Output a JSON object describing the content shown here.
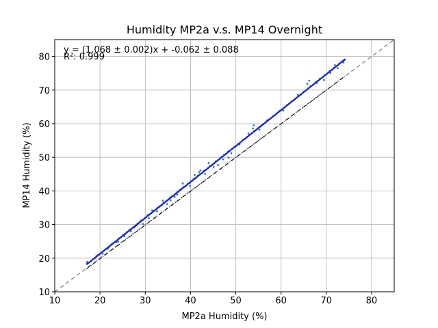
{
  "chart_data": {
    "type": "scatter",
    "title": "Humidity MP2a v.s. MP14 Overnight",
    "xlabel": "MP2a Humidity (%)",
    "ylabel": "MP14 Humidity (%)",
    "xlim": [
      10,
      85
    ],
    "ylim": [
      10,
      85
    ],
    "xticks": [
      10,
      20,
      30,
      40,
      50,
      60,
      70,
      80
    ],
    "yticks": [
      10,
      20,
      30,
      40,
      50,
      60,
      70,
      80
    ],
    "grid": true,
    "annotations": {
      "equation": "y = (1.068 ± 0.002)x + -0.062 ± 0.088",
      "r_squared": "R²: 0.999"
    },
    "fit": {
      "slope": 1.068,
      "intercept": -0.062,
      "x_range": [
        17,
        74.2
      ],
      "color": "#1f1fd6"
    },
    "identity_line": {
      "slope": 1,
      "intercept": 0,
      "color": "#999999",
      "style": "dashed"
    },
    "reference_line": {
      "x_range": [
        17,
        74.2
      ],
      "y_range": [
        16.8,
        74.2
      ],
      "color": "#000000",
      "style": "dash-dot"
    },
    "points_color": "#2a7ab8",
    "points": [
      [
        17.1,
        18.4
      ],
      [
        17.2,
        18.9
      ],
      [
        18.0,
        19.1
      ],
      [
        18.6,
        19.8
      ],
      [
        19.0,
        20.1
      ],
      [
        19.5,
        20.9
      ],
      [
        19.9,
        21.1
      ],
      [
        20.3,
        21.7
      ],
      [
        20.8,
        22.2
      ],
      [
        21.2,
        22.6
      ],
      [
        21.5,
        22.8
      ],
      [
        22.0,
        23.4
      ],
      [
        22.4,
        23.9
      ],
      [
        22.9,
        24.4
      ],
      [
        23.3,
        24.8
      ],
      [
        23.8,
        25.3
      ],
      [
        24.2,
        25.9
      ],
      [
        24.7,
        26.3
      ],
      [
        25.1,
        26.9
      ],
      [
        25.6,
        27.2
      ],
      [
        26.0,
        27.8
      ],
      [
        26.5,
        28.4
      ],
      [
        26.9,
        28.7
      ],
      [
        27.4,
        29.2
      ],
      [
        27.8,
        29.6
      ],
      [
        28.3,
        30.3
      ],
      [
        28.7,
        30.6
      ],
      [
        29.1,
        31.2
      ],
      [
        29.6,
        31.5
      ],
      [
        30.0,
        32.0
      ],
      [
        30.5,
        32.8
      ],
      [
        30.9,
        33.0
      ],
      [
        31.4,
        33.5
      ],
      [
        31.8,
        34.1
      ],
      [
        32.3,
        34.4
      ],
      [
        32.7,
        35.0
      ],
      [
        33.1,
        35.4
      ],
      [
        33.6,
        35.7
      ],
      [
        34.0,
        36.4
      ],
      [
        34.5,
        36.8
      ],
      [
        34.9,
        37.2
      ],
      [
        35.4,
        37.9
      ],
      [
        35.8,
        38.3
      ],
      [
        36.3,
        38.6
      ],
      [
        36.7,
        39.2
      ],
      [
        37.1,
        39.7
      ],
      [
        37.6,
        40.2
      ],
      [
        38.0,
        40.6
      ],
      [
        38.5,
        41.2
      ],
      [
        38.9,
        41.4
      ],
      [
        39.4,
        42.1
      ],
      [
        39.8,
        42.4
      ],
      [
        40.3,
        43.0
      ],
      [
        40.7,
        43.6
      ],
      [
        41.1,
        43.8
      ],
      [
        41.6,
        44.5
      ],
      [
        42.0,
        44.9
      ],
      [
        42.5,
        45.2
      ],
      [
        42.9,
        46.0
      ],
      [
        43.4,
        46.3
      ],
      [
        43.8,
        46.7
      ],
      [
        44.3,
        47.4
      ],
      [
        44.7,
        47.6
      ],
      [
        45.2,
        48.2
      ],
      [
        45.6,
        48.8
      ],
      [
        46.0,
        49.1
      ],
      [
        46.5,
        49.6
      ],
      [
        46.9,
        50.1
      ],
      [
        47.4,
        50.7
      ],
      [
        47.8,
        51.0
      ],
      [
        48.3,
        51.7
      ],
      [
        48.7,
        52.0
      ],
      [
        49.2,
        52.5
      ],
      [
        49.6,
        53.0
      ],
      [
        50.0,
        53.3
      ],
      [
        50.5,
        54.0
      ],
      [
        51.0,
        54.4
      ],
      [
        51.5,
        55.1
      ],
      [
        52.0,
        55.5
      ],
      [
        52.5,
        56.0
      ],
      [
        53.0,
        56.7
      ],
      [
        53.6,
        57.2
      ],
      [
        54.1,
        57.9
      ],
      [
        54.6,
        58.3
      ],
      [
        55.1,
        58.9
      ],
      [
        55.6,
        59.4
      ],
      [
        56.1,
        59.9
      ],
      [
        56.6,
        60.4
      ],
      [
        57.1,
        61.1
      ],
      [
        57.6,
        61.5
      ],
      [
        58.2,
        62.2
      ],
      [
        58.7,
        62.6
      ],
      [
        59.2,
        63.3
      ],
      [
        59.7,
        63.8
      ],
      [
        60.2,
        64.2
      ],
      [
        60.8,
        64.9
      ],
      [
        61.3,
        65.5
      ],
      [
        61.8,
        66.0
      ],
      [
        62.3,
        66.6
      ],
      [
        62.9,
        67.1
      ],
      [
        63.4,
        67.7
      ],
      [
        63.9,
        68.3
      ],
      [
        64.4,
        68.7
      ],
      [
        65.0,
        69.5
      ],
      [
        65.5,
        69.9
      ],
      [
        66.0,
        70.5
      ],
      [
        66.5,
        71.1
      ],
      [
        67.1,
        71.6
      ],
      [
        67.6,
        72.3
      ],
      [
        68.1,
        72.7
      ],
      [
        68.6,
        73.4
      ],
      [
        69.2,
        73.8
      ],
      [
        69.7,
        74.5
      ],
      [
        70.2,
        74.9
      ],
      [
        70.7,
        75.6
      ],
      [
        71.2,
        76.0
      ],
      [
        71.7,
        76.6
      ],
      [
        72.2,
        77.1
      ],
      [
        72.7,
        77.7
      ],
      [
        73.1,
        78.1
      ],
      [
        73.5,
        78.6
      ],
      [
        73.9,
        78.9
      ],
      [
        74.1,
        79.1
      ],
      [
        72.5,
        76.5
      ],
      [
        71.9,
        77.4
      ],
      [
        66.2,
        72.8
      ],
      [
        65.8,
        71.9
      ],
      [
        55.2,
        58.2
      ],
      [
        54.0,
        59.5
      ],
      [
        48.4,
        49.9
      ],
      [
        49.0,
        51.2
      ],
      [
        47.2,
        49.4
      ],
      [
        46.1,
        47.7
      ],
      [
        45.1,
        47.1
      ],
      [
        44.0,
        48.3
      ],
      [
        43.2,
        45.1
      ],
      [
        42.2,
        46.1
      ],
      [
        40.9,
        44.7
      ],
      [
        39.9,
        41.5
      ],
      [
        38.3,
        42.2
      ],
      [
        37.0,
        38.9
      ],
      [
        35.6,
        37.2
      ],
      [
        34.8,
        36.1
      ],
      [
        33.9,
        37.1
      ],
      [
        32.6,
        33.9
      ],
      [
        31.5,
        34.2
      ],
      [
        30.8,
        31.9
      ],
      [
        29.5,
        30.2
      ],
      [
        28.1,
        29.8
      ],
      [
        26.8,
        28.0
      ],
      [
        25.4,
        26.5
      ],
      [
        24.0,
        24.9
      ],
      [
        22.7,
        24.4
      ],
      [
        21.8,
        22.9
      ],
      [
        20.6,
        21.3
      ],
      [
        19.2,
        20.6
      ],
      [
        52.8,
        57.1
      ],
      [
        56.9,
        60.9
      ],
      [
        60.5,
        63.9
      ],
      [
        63.7,
        68.6
      ],
      [
        67.9,
        72.1
      ],
      [
        69.5,
        73.0
      ],
      [
        70.9,
        75.1
      ],
      [
        73.8,
        78.2
      ],
      [
        53.8,
        58.6
      ],
      [
        50.8,
        53.8
      ],
      [
        41.9,
        45.6
      ],
      [
        36.5,
        38.2
      ],
      [
        27.6,
        29.1
      ],
      [
        23.6,
        24.7
      ]
    ]
  }
}
